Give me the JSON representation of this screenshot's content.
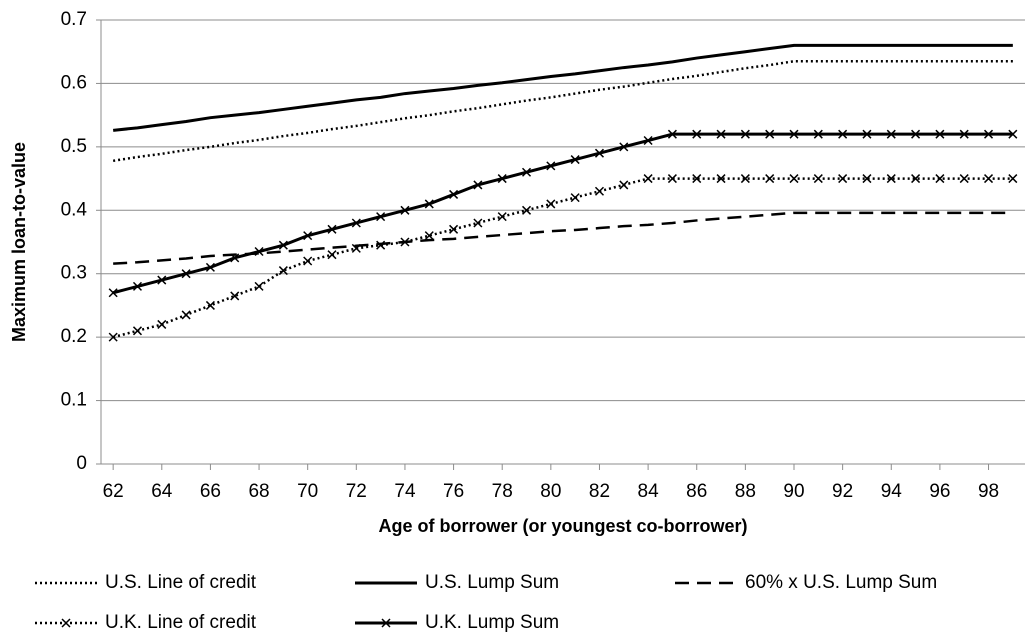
{
  "chart_data": {
    "type": "line",
    "x_label": "Age of borrower (or youngest co-borrower)",
    "y_label": "Maximum loan-to-value",
    "x": [
      62,
      63,
      64,
      65,
      66,
      67,
      68,
      69,
      70,
      71,
      72,
      73,
      74,
      75,
      76,
      77,
      78,
      79,
      80,
      81,
      82,
      83,
      84,
      85,
      86,
      87,
      88,
      89,
      90,
      91,
      92,
      93,
      94,
      95,
      96,
      97,
      98,
      99
    ],
    "xlim": [
      61.5,
      99.5
    ],
    "xticks": [
      62,
      64,
      66,
      68,
      70,
      72,
      74,
      76,
      78,
      80,
      82,
      84,
      86,
      88,
      90,
      92,
      94,
      96,
      98
    ],
    "ylim": [
      0,
      0.7
    ],
    "yticks": [
      0,
      0.1,
      0.2,
      0.3,
      0.4,
      0.5,
      0.6,
      0.7
    ],
    "grid": true,
    "legend": "bottom",
    "series": [
      {
        "name": "U.S. Line of credit",
        "color": "#000000",
        "line_style": "dotted",
        "marker": "none",
        "values": [
          0.478,
          0.484,
          0.489,
          0.495,
          0.5,
          0.506,
          0.511,
          0.517,
          0.522,
          0.528,
          0.533,
          0.539,
          0.545,
          0.55,
          0.556,
          0.561,
          0.567,
          0.573,
          0.578,
          0.584,
          0.59,
          0.595,
          0.601,
          0.607,
          0.612,
          0.618,
          0.624,
          0.629,
          0.635,
          0.635,
          0.635,
          0.635,
          0.635,
          0.635,
          0.635,
          0.635,
          0.635,
          0.635
        ]
      },
      {
        "name": "U.S. Lump Sum",
        "color": "#000000",
        "line_style": "solid",
        "marker": "none",
        "values": [
          0.526,
          0.53,
          0.535,
          0.54,
          0.546,
          0.55,
          0.554,
          0.559,
          0.564,
          0.569,
          0.574,
          0.578,
          0.584,
          0.588,
          0.592,
          0.597,
          0.601,
          0.606,
          0.611,
          0.615,
          0.62,
          0.625,
          0.629,
          0.634,
          0.64,
          0.645,
          0.65,
          0.655,
          0.66,
          0.66,
          0.66,
          0.66,
          0.66,
          0.66,
          0.66,
          0.66,
          0.66,
          0.66
        ]
      },
      {
        "name": "60% x U.S. Lump Sum",
        "color": "#000000",
        "line_style": "dashed",
        "marker": "none",
        "values": [
          0.316,
          0.318,
          0.321,
          0.324,
          0.328,
          0.33,
          0.332,
          0.335,
          0.338,
          0.341,
          0.344,
          0.347,
          0.35,
          0.353,
          0.355,
          0.358,
          0.361,
          0.364,
          0.367,
          0.369,
          0.372,
          0.375,
          0.377,
          0.38,
          0.384,
          0.387,
          0.39,
          0.393,
          0.396,
          0.396,
          0.396,
          0.396,
          0.396,
          0.396,
          0.396,
          0.396,
          0.396,
          0.396
        ]
      },
      {
        "name": "U.K. Line of credit",
        "color": "#000000",
        "line_style": "dotted",
        "marker": "x",
        "values": [
          0.2,
          0.21,
          0.22,
          0.235,
          0.25,
          0.265,
          0.28,
          0.305,
          0.32,
          0.33,
          0.34,
          0.345,
          0.35,
          0.36,
          0.37,
          0.38,
          0.39,
          0.4,
          0.41,
          0.42,
          0.43,
          0.44,
          0.45,
          0.45,
          0.45,
          0.45,
          0.45,
          0.45,
          0.45,
          0.45,
          0.45,
          0.45,
          0.45,
          0.45,
          0.45,
          0.45,
          0.45,
          0.45
        ]
      },
      {
        "name": "U.K. Lump Sum",
        "color": "#000000",
        "line_style": "solid",
        "marker": "x",
        "values": [
          0.27,
          0.28,
          0.29,
          0.3,
          0.31,
          0.325,
          0.335,
          0.345,
          0.36,
          0.37,
          0.38,
          0.39,
          0.4,
          0.41,
          0.425,
          0.44,
          0.45,
          0.46,
          0.47,
          0.48,
          0.49,
          0.5,
          0.51,
          0.52,
          0.52,
          0.52,
          0.52,
          0.52,
          0.52,
          0.52,
          0.52,
          0.52,
          0.52,
          0.52,
          0.52,
          0.52,
          0.52,
          0.52
        ]
      }
    ]
  }
}
